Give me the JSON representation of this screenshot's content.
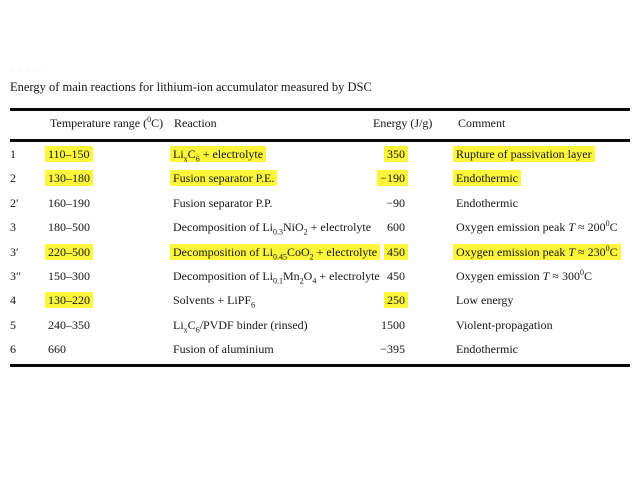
{
  "colors": {
    "highlight": "#fcf63b",
    "text": "#161616",
    "rule": "#0a0a0a",
    "background": "#ffffff"
  },
  "artifact_marks": "‐ ‐ ‐ ‐ ·",
  "caption": "Energy of main reactions for lithium-ion accumulator measured by DSC",
  "table": {
    "headers": {
      "temperature": "Temperature range (<sup>0</sup>C)",
      "reaction": "Reaction",
      "energy": "Energy (J/g)",
      "comment": "Comment"
    },
    "rows": [
      {
        "index": "1",
        "temp": "110–150",
        "reaction": "Li<sub>x</sub>C<sub>6</sub> + electrolyte",
        "energy": "350",
        "comment": "Rupture of passivation layer",
        "highlight": [
          "temp",
          "reaction",
          "energy",
          "comment"
        ]
      },
      {
        "index": "2",
        "temp": "130–180",
        "reaction": "Fusion separator P.E.",
        "energy": "−190",
        "comment": "Endothermic",
        "highlight": [
          "temp",
          "reaction",
          "energy",
          "comment"
        ]
      },
      {
        "index": "2′",
        "temp": "160–190",
        "reaction": "Fusion separator P.P.",
        "energy": "−90",
        "comment": "Endothermic",
        "highlight": []
      },
      {
        "index": "3",
        "temp": "180–500",
        "reaction": "Decomposition of Li<sub>0.3</sub>NiO<sub>2</sub> + electrolyte",
        "energy": "600",
        "comment": "Oxygen emission peak <i>T</i> ≈ 200<sup>0</sup>C",
        "highlight": []
      },
      {
        "index": "3′",
        "temp": "220–500",
        "reaction": "Decomposition of Li<sub>0.45</sub>CoO<sub>2</sub> + electrolyte",
        "energy": "450",
        "comment": "Oxygen emission peak <i>T</i> ≈ 230<sup>0</sup>C",
        "highlight": [
          "temp",
          "reaction",
          "energy",
          "comment"
        ]
      },
      {
        "index": "3″",
        "temp": "150–300",
        "reaction": "Decomposition of Li<sub>0.1</sub>Mn<sub>2</sub>O<sub>4</sub> + electrolyte",
        "energy": "450",
        "comment": "Oxygen emission <i>T</i> ≈ 300<sup>0</sup>C",
        "highlight": []
      },
      {
        "index": "4",
        "temp": "130–220",
        "reaction": "Solvents + LiPF<sub>6</sub>",
        "energy": "250",
        "comment": "Low energy",
        "highlight": [
          "temp",
          "energy"
        ]
      },
      {
        "index": "5",
        "temp": "240–350",
        "reaction": "Li<sub>x</sub>C<sub>6</sub>/PVDF binder (rinsed)",
        "energy": "1500",
        "comment": "Violent-propagation",
        "highlight": []
      },
      {
        "index": "6",
        "temp": "660",
        "reaction": "Fusion of aluminium",
        "energy": "−395",
        "comment": "Endothermic",
        "highlight": []
      }
    ]
  }
}
